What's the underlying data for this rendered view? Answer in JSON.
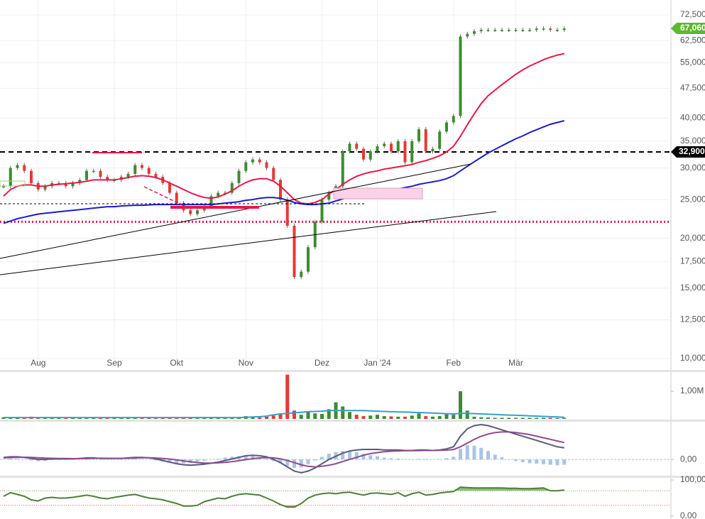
{
  "chart_data": [
    {
      "type": "price",
      "categories": [
        null,
        null,
        null,
        null,
        null,
        "Aug",
        null,
        null,
        null,
        null,
        null,
        null,
        null,
        null,
        null,
        null,
        "Sep",
        null,
        null,
        null,
        null,
        null,
        null,
        null,
        null,
        "Okt",
        null,
        null,
        null,
        null,
        null,
        null,
        null,
        null,
        null,
        "Nov",
        null,
        null,
        null,
        null,
        null,
        null,
        null,
        null,
        null,
        null,
        "Dez",
        null,
        null,
        null,
        null,
        null,
        null,
        null,
        "Jan '24",
        null,
        null,
        null,
        null,
        null,
        null,
        null,
        null,
        null,
        null,
        "Feb",
        null,
        null,
        null,
        null,
        null,
        null,
        null,
        null,
        "Mär",
        null,
        null,
        null,
        null,
        null,
        null,
        null
      ],
      "ylim": [
        10000,
        72500
      ],
      "log_scale": true,
      "grid": true,
      "yticks": [
        {
          "value": 72500,
          "label": "72,500"
        },
        {
          "value": 62500,
          "label": "62,500"
        },
        {
          "value": 55000,
          "label": "55,000"
        },
        {
          "value": 47500,
          "label": "47,500"
        },
        {
          "value": 40000,
          "label": "40,000"
        },
        {
          "value": 35000,
          "label": "35,000"
        },
        {
          "value": 30000,
          "label": "30,000"
        },
        {
          "value": 25000,
          "label": "25,000"
        },
        {
          "value": 20000,
          "label": "20,000"
        },
        {
          "value": 17500,
          "label": "17,500"
        },
        {
          "value": 15000,
          "label": "15,000"
        },
        {
          "value": 12500,
          "label": "12,500"
        },
        {
          "value": 10000,
          "label": "10,000"
        }
      ],
      "series": [
        {
          "type": "price",
          "color": "#3a8d2f",
          "down_color": "#e53935",
          "values": [
            27000,
            30000,
            30500,
            29500,
            27500,
            26500,
            27000,
            27500,
            27500,
            27000,
            27500,
            28000,
            29500,
            29500,
            28500,
            28000,
            28000,
            28500,
            29000,
            30500,
            30000,
            29000,
            28500,
            27500,
            26000,
            24500,
            23500,
            23000,
            23500,
            24000,
            25500,
            26000,
            26000,
            27500,
            29500,
            31000,
            31500,
            31000,
            30000,
            28000,
            25000,
            21500,
            16000,
            16500,
            19000,
            22000,
            25000,
            26000,
            27000,
            33000,
            34500,
            33500,
            31500,
            33000,
            34000,
            34500,
            33000,
            35000,
            31000,
            35000,
            37500,
            33000,
            33500,
            37000,
            39000,
            40500,
            64000,
            65000,
            66000,
            66500,
            66500,
            66500,
            66500,
            66500,
            66500,
            66500,
            66500,
            67000,
            67000,
            66500,
            66500,
            67060
          ]
        },
        {
          "type": "line",
          "color": "#e8174a",
          "values": [
            25500,
            26500,
            27000,
            27200,
            27200,
            27000,
            27000,
            27200,
            27300,
            27400,
            27500,
            27600,
            27800,
            28000,
            28000,
            28000,
            28000,
            28200,
            28400,
            28600,
            28700,
            28600,
            28400,
            28000,
            27500,
            27000,
            26500,
            26000,
            25600,
            25300,
            25200,
            25400,
            25800,
            26300,
            27000,
            27600,
            28000,
            28200,
            28200,
            27800,
            27000,
            26000,
            25000,
            24500,
            24400,
            24600,
            25000,
            25800,
            26500,
            27300,
            28000,
            28600,
            29000,
            29300,
            29500,
            29800,
            30000,
            30200,
            30400,
            30600,
            31000,
            31300,
            31700,
            32200,
            32900,
            34000,
            36000,
            38500,
            41000,
            43500,
            45500,
            47000,
            48500,
            50000,
            51500,
            52800,
            54000,
            55000,
            56000,
            56800,
            57500,
            58000
          ]
        },
        {
          "type": "line",
          "color": "#1c1ccc",
          "values": [
            21800,
            22100,
            22400,
            22600,
            22800,
            23000,
            23100,
            23200,
            23300,
            23400,
            23500,
            23600,
            23700,
            23800,
            23900,
            24000,
            24000,
            24100,
            24150,
            24200,
            24200,
            24250,
            24300,
            24300,
            24300,
            24300,
            24300,
            24300,
            24300,
            24300,
            24300,
            24400,
            24500,
            24600,
            24700,
            24900,
            25000,
            25200,
            25300,
            25300,
            25200,
            24900,
            24600,
            24400,
            24300,
            24300,
            24400,
            24500,
            24800,
            25100,
            25400,
            25600,
            25800,
            26000,
            26100,
            26300,
            26400,
            26600,
            26800,
            27000,
            27300,
            27500,
            27700,
            27900,
            28200,
            28700,
            29500,
            30300,
            31100,
            31900,
            32700,
            33400,
            34100,
            34800,
            35500,
            36100,
            36800,
            37400,
            38000,
            38600,
            39000,
            39400
          ]
        }
      ],
      "levels": [
        {
          "value": 32900,
          "label": "32,900",
          "color": "#000000",
          "style": "dashed"
        },
        {
          "value": 22000,
          "color": "#e8174a",
          "style": "dotted"
        }
      ],
      "last_price": {
        "value": 67060,
        "label": "67,060",
        "color": "#5cb82e"
      }
    },
    {
      "type": "volume",
      "ylim": [
        0,
        1670000
      ],
      "yticks": [
        {
          "value": 1000000,
          "label": "1,00M"
        }
      ],
      "series": [
        {
          "type": "bar",
          "color": "#3a8d2f",
          "down_color": "#e53935",
          "values": [
            60000,
            30000,
            30000,
            40000,
            80000,
            30000,
            30000,
            30000,
            30000,
            30000,
            30000,
            30000,
            30000,
            30000,
            40000,
            30000,
            30000,
            30000,
            30000,
            30000,
            30000,
            30000,
            40000,
            30000,
            40000,
            30000,
            30000,
            40000,
            30000,
            40000,
            40000,
            30000,
            30000,
            40000,
            60000,
            100000,
            80000,
            60000,
            80000,
            120000,
            200000,
            1600000,
            300000,
            150000,
            250000,
            200000,
            180000,
            350000,
            600000,
            450000,
            250000,
            150000,
            100000,
            120000,
            150000,
            100000,
            90000,
            80000,
            80000,
            120000,
            200000,
            100000,
            80000,
            100000,
            200000,
            150000,
            1000000,
            300000,
            80000,
            60000,
            50000,
            40000,
            40000,
            40000,
            40000,
            40000,
            40000,
            40000,
            40000,
            40000,
            30000,
            40000
          ]
        },
        {
          "type": "line",
          "color": "#3a9fc8",
          "values": [
            50000,
            50000,
            50000,
            50000,
            50000,
            50000,
            50000,
            50000,
            50000,
            50000,
            50000,
            50000,
            50000,
            50000,
            50000,
            50000,
            50000,
            50000,
            50000,
            50000,
            50000,
            50000,
            50000,
            50000,
            50000,
            50000,
            50000,
            50000,
            50000,
            50000,
            50000,
            50000,
            50000,
            50000,
            50000,
            60000,
            70000,
            80000,
            100000,
            150000,
            180000,
            200000,
            220000,
            240000,
            260000,
            270000,
            280000,
            300000,
            300000,
            300000,
            300000,
            300000,
            300000,
            290000,
            280000,
            270000,
            260000,
            250000,
            250000,
            240000,
            230000,
            220000,
            210000,
            200000,
            190000,
            180000,
            200000,
            200000,
            190000,
            180000,
            170000,
            160000,
            150000,
            140000,
            130000,
            120000,
            110000,
            100000,
            90000,
            80000,
            70000,
            60000
          ]
        }
      ]
    },
    {
      "type": "macd",
      "ylim": [
        -1400,
        3500
      ],
      "yticks": [
        {
          "value": 0,
          "label": "0,00"
        }
      ],
      "series": [
        {
          "type": "bar",
          "color": "#a9c4e4",
          "values": [
            50,
            70,
            50,
            -10,
            -90,
            -160,
            -130,
            -60,
            -50,
            -40,
            -30,
            15,
            50,
            40,
            -15,
            -10,
            -10,
            -10,
            30,
            60,
            40,
            -10,
            -90,
            -200,
            -290,
            -360,
            -370,
            -330,
            -210,
            -120,
            -10,
            70,
            180,
            260,
            320,
            370,
            320,
            200,
            70,
            -150,
            -360,
            -600,
            -800,
            -750,
            -450,
            -100,
            250,
            550,
            700,
            800,
            800,
            700,
            550,
            400,
            300,
            170,
            120,
            90,
            30,
            20,
            60,
            50,
            0,
            40,
            120,
            260,
            1000,
            1350,
            1300,
            1100,
            800,
            450,
            200,
            0,
            -150,
            -250,
            -350,
            -400,
            -450,
            -500,
            -550,
            -500
          ]
        },
        {
          "type": "line",
          "color": "#5a5a7a",
          "values": [
            200,
            250,
            250,
            200,
            100,
            0,
            0,
            50,
            50,
            50,
            50,
            100,
            150,
            150,
            100,
            100,
            100,
            100,
            150,
            200,
            200,
            150,
            50,
            -100,
            -250,
            -400,
            -500,
            -550,
            -500,
            -450,
            -350,
            -250,
            -100,
            50,
            200,
            350,
            400,
            350,
            250,
            0,
            -300,
            -700,
            -1100,
            -1250,
            -1100,
            -800,
            -400,
            0,
            300,
            600,
            800,
            900,
            950,
            950,
            950,
            900,
            900,
            900,
            850,
            850,
            900,
            900,
            850,
            900,
            1000,
            1200,
            2200,
            2900,
            3200,
            3300,
            3200,
            3000,
            2800,
            2600,
            2400,
            2200,
            2000,
            1800,
            1600,
            1400,
            1200,
            1100
          ]
        },
        {
          "type": "line",
          "color": "#8e4c8e",
          "values": [
            150,
            180,
            200,
            210,
            190,
            160,
            130,
            110,
            100,
            90,
            80,
            85,
            100,
            110,
            115,
            110,
            110,
            110,
            120,
            140,
            160,
            160,
            140,
            100,
            40,
            -40,
            -130,
            -220,
            -290,
            -330,
            -340,
            -320,
            -280,
            -210,
            -120,
            -20,
            80,
            150,
            180,
            150,
            60,
            -100,
            -300,
            -500,
            -650,
            -700,
            -650,
            -550,
            -400,
            -200,
            0,
            200,
            400,
            550,
            650,
            730,
            780,
            810,
            820,
            830,
            840,
            850,
            850,
            860,
            880,
            940,
            1200,
            1550,
            1900,
            2200,
            2400,
            2550,
            2600,
            2600,
            2550,
            2450,
            2350,
            2200,
            2050,
            1900,
            1750,
            1600
          ]
        }
      ]
    },
    {
      "type": "rsi",
      "ylim": [
        0,
        100
      ],
      "yticks": [
        {
          "value": 100,
          "label": "100,00"
        },
        {
          "value": 0,
          "label": "0,00"
        }
      ],
      "levels": [
        {
          "value": 70,
          "color": "#6aa84f"
        },
        {
          "value": 30,
          "color": "#e06666"
        }
      ],
      "series": [
        {
          "type": "line",
          "color": "#4f7f3a",
          "values": [
            55,
            65,
            60,
            55,
            45,
            42,
            50,
            52,
            50,
            50,
            52,
            55,
            58,
            55,
            50,
            48,
            52,
            55,
            58,
            60,
            55,
            50,
            48,
            45,
            40,
            35,
            28,
            28,
            30,
            40,
            45,
            50,
            48,
            55,
            60,
            62,
            60,
            58,
            50,
            42,
            32,
            25,
            25,
            35,
            50,
            58,
            62,
            64,
            62,
            65,
            66,
            62,
            58,
            63,
            64,
            62,
            60,
            65,
            55,
            62,
            66,
            58,
            60,
            64,
            66,
            68,
            80,
            79,
            78,
            78,
            78,
            78,
            78,
            77,
            77,
            76,
            76,
            77,
            78,
            70,
            70,
            72
          ]
        }
      ]
    }
  ]
}
